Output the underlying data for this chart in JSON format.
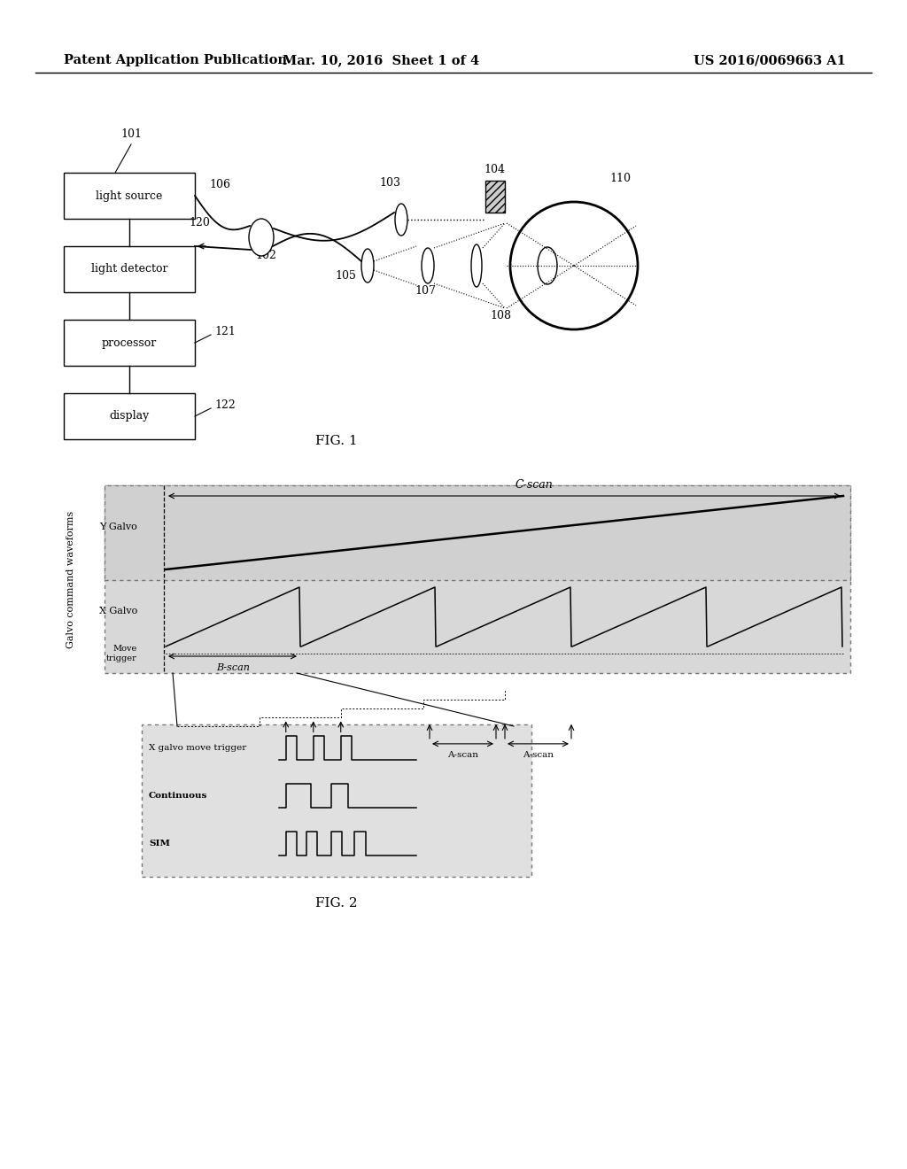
{
  "bg_color": "#ffffff",
  "header_left": "Patent Application Publication",
  "header_mid": "Mar. 10, 2016  Sheet 1 of 4",
  "header_right": "US 2016/0069663 A1",
  "fig1_label": "FIG. 1",
  "fig2_label": "FIG. 2",
  "panel_bg": "#d8d8d8",
  "panel_bg2": "#e0e0e0",
  "cscan_label": "C-scan",
  "ygalvo_label": "Y Galvo",
  "xgalvo_label": "X Galvo",
  "bscan_label": "B-scan",
  "movetrigger_label": "Move\ntrigger",
  "galvo_ylabel": "Galvo command waveforms",
  "ascan_label1": "A-scan",
  "ascan_label2": "A-scan",
  "xgalvo_movetrigger_label": "X galvo move trigger",
  "continuous_label": "Continuous",
  "sim_label": "SIM"
}
